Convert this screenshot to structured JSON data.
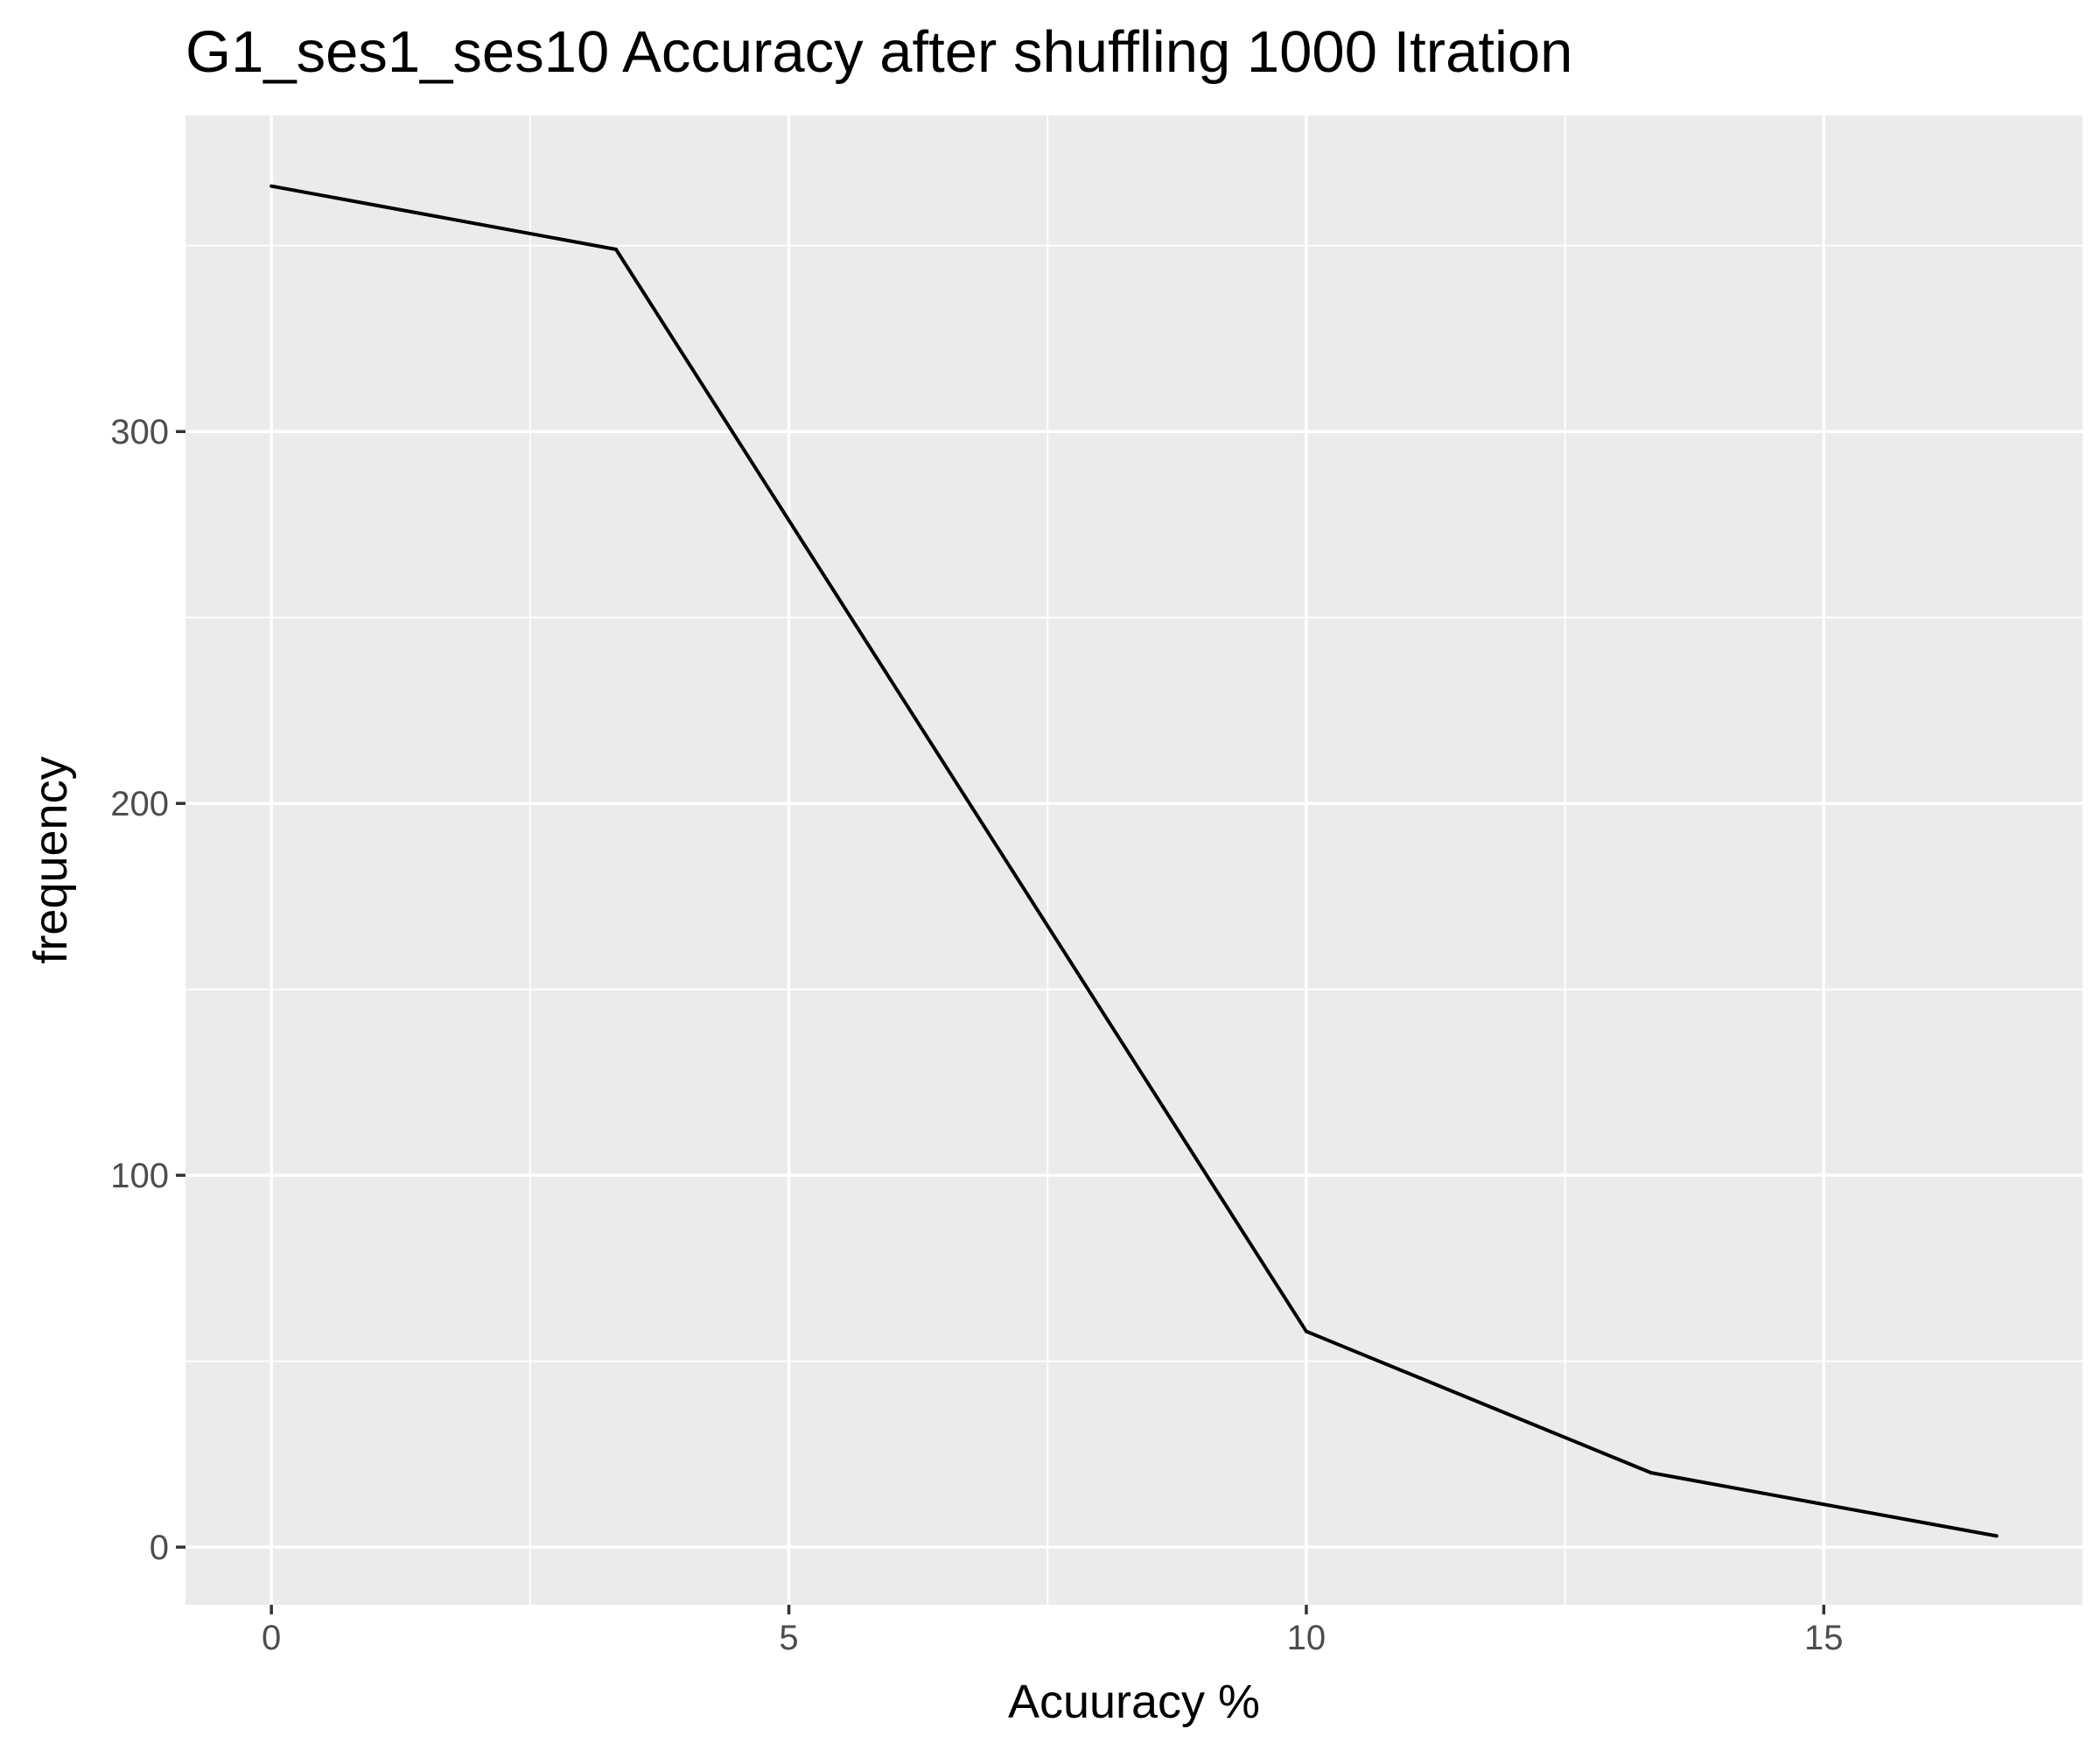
{
  "chart_data": {
    "type": "line",
    "title": "G1_ses1_ses10 Accuracy after shuffling  1000 Itration",
    "xlabel": "Acuuracy %",
    "ylabel": "frequency",
    "xlim": [
      -0.83,
      17.5
    ],
    "ylim": [
      -15.5,
      385
    ],
    "x_ticks": [
      0,
      5,
      10,
      15
    ],
    "x_tick_labels": [
      "0",
      "5",
      "10",
      "15"
    ],
    "y_ticks": [
      0,
      100,
      200,
      300
    ],
    "y_tick_labels": [
      "0",
      "100",
      "200",
      "300"
    ],
    "grid": true,
    "x": [
      0,
      3.33,
      10,
      13.33,
      16.67
    ],
    "y": [
      366,
      349,
      58,
      20,
      3
    ],
    "colors": {
      "panel": "#ebebeb",
      "grid": "#ffffff",
      "line": "#000000",
      "tick_text": "#4d4d4d"
    }
  }
}
